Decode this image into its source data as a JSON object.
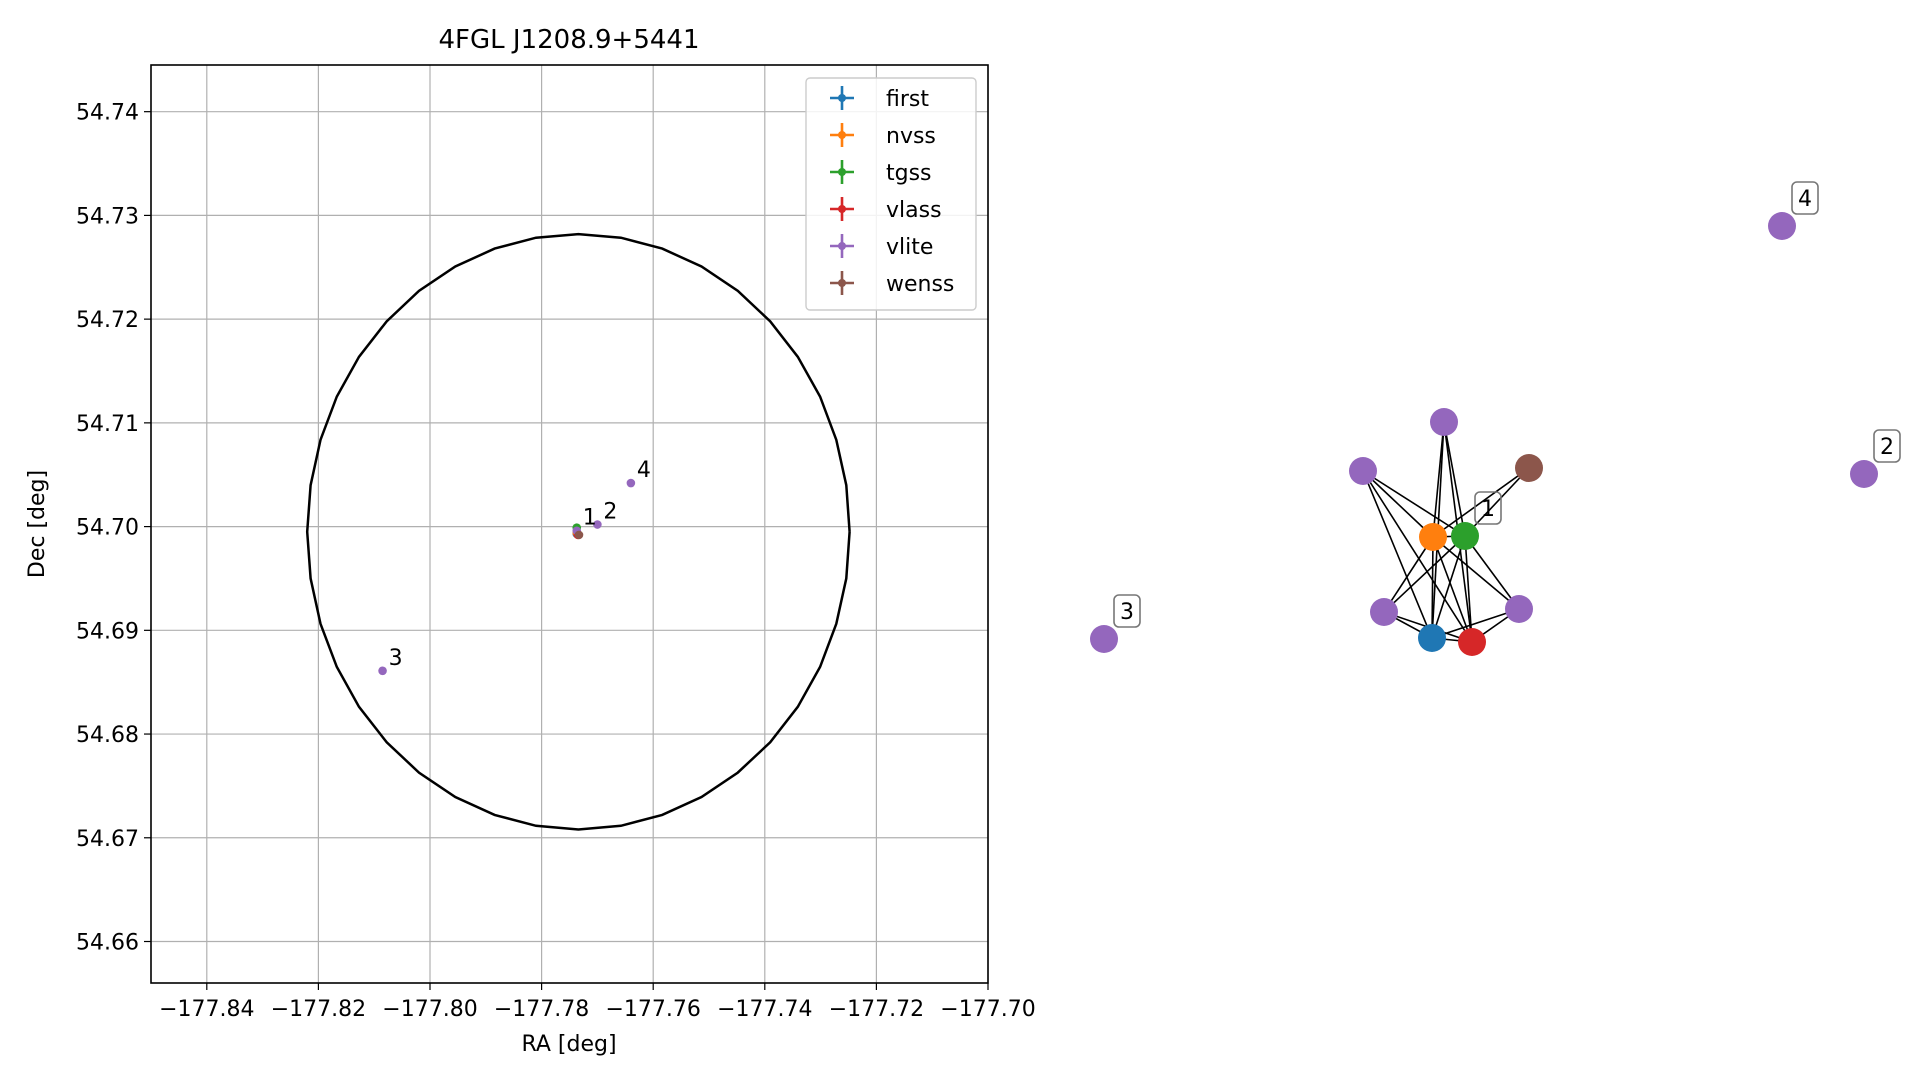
{
  "chart_data": [
    {
      "type": "scatter",
      "title": "4FGL J1208.9+5441",
      "xlabel": "RA [deg]",
      "ylabel": "Dec [deg]",
      "xlim": [
        -177.85,
        -177.7
      ],
      "ylim": [
        54.656,
        54.7445
      ],
      "xticks": [
        -177.84,
        -177.82,
        -177.8,
        -177.78,
        -177.76,
        -177.74,
        -177.72,
        -177.7
      ],
      "xtick_labels": [
        "−177.84",
        "−177.82",
        "−177.80",
        "−177.78",
        "−177.76",
        "−177.74",
        "−177.72",
        "−177.70"
      ],
      "yticks": [
        54.66,
        54.67,
        54.68,
        54.69,
        54.7,
        54.71,
        54.72,
        54.73,
        54.74
      ],
      "ytick_labels": [
        "54.66",
        "54.67",
        "54.68",
        "54.69",
        "54.70",
        "54.71",
        "54.72",
        "54.73",
        "54.74"
      ],
      "grid": true,
      "legend_position": "top-right",
      "ellipse": {
        "center": [
          -177.7734,
          54.6995
        ],
        "half_width_ra": 0.0486,
        "half_height_dec": 0.0287,
        "color": "#000000"
      },
      "series": [
        {
          "name": "first",
          "color": "#1f77b4",
          "points": [
            [
              -177.7737,
              54.6993
            ]
          ]
        },
        {
          "name": "nvss",
          "color": "#ff7f0e",
          "points": [
            [
              -177.7737,
              54.6994
            ]
          ]
        },
        {
          "name": "tgss",
          "color": "#2ca02c",
          "points": [
            [
              -177.7737,
              54.6999
            ]
          ]
        },
        {
          "name": "vlass",
          "color": "#d62728",
          "points": [
            [
              -177.7735,
              54.6992
            ]
          ]
        },
        {
          "name": "vlite",
          "color": "#9467bd",
          "points": [
            [
              -177.7737,
              54.6996
            ],
            [
              -177.77,
              54.7002
            ],
            [
              -177.8085,
              54.6861
            ],
            [
              -177.764,
              54.7042
            ]
          ]
        },
        {
          "name": "wenss",
          "color": "#8c564b",
          "points": [
            [
              -177.7733,
              54.6992
            ]
          ]
        }
      ],
      "annotations": [
        {
          "text": "1",
          "at": [
            -177.7737,
            54.6996
          ]
        },
        {
          "text": "2",
          "at": [
            -177.77,
            54.7002
          ]
        },
        {
          "text": "3",
          "at": [
            -177.8085,
            54.6861
          ]
        },
        {
          "text": "4",
          "at": [
            -177.764,
            54.7042
          ]
        }
      ]
    },
    {
      "type": "network",
      "node_colors": {
        "vlite": "#9467bd",
        "first": "#1f77b4",
        "nvss": "#ff7f0e",
        "tgss": "#2ca02c",
        "vlass": "#d62728",
        "wenss": "#8c564b"
      },
      "nodes": [
        {
          "id": "v_top",
          "kind": "vlite",
          "label": ""
        },
        {
          "id": "v_left",
          "kind": "vlite",
          "label": ""
        },
        {
          "id": "wenss",
          "kind": "wenss",
          "label": ""
        },
        {
          "id": "nvss",
          "kind": "nvss",
          "label": ""
        },
        {
          "id": "tgss",
          "kind": "tgss",
          "label": "1"
        },
        {
          "id": "v_bl",
          "kind": "vlite",
          "label": ""
        },
        {
          "id": "v_br",
          "kind": "vlite",
          "label": ""
        },
        {
          "id": "first",
          "kind": "first",
          "label": ""
        },
        {
          "id": "vlass",
          "kind": "vlass",
          "label": ""
        },
        {
          "id": "v3",
          "kind": "vlite",
          "label": "3"
        },
        {
          "id": "v4",
          "kind": "vlite",
          "label": "4"
        },
        {
          "id": "v2",
          "kind": "vlite",
          "label": "2"
        }
      ],
      "edges": [
        [
          "v_top",
          "nvss"
        ],
        [
          "v_top",
          "tgss"
        ],
        [
          "v_top",
          "first"
        ],
        [
          "v_top",
          "vlass"
        ],
        [
          "v_left",
          "nvss"
        ],
        [
          "v_left",
          "tgss"
        ],
        [
          "v_left",
          "first"
        ],
        [
          "v_left",
          "vlass"
        ],
        [
          "wenss",
          "nvss"
        ],
        [
          "wenss",
          "tgss"
        ],
        [
          "nvss",
          "tgss"
        ],
        [
          "nvss",
          "v_bl"
        ],
        [
          "nvss",
          "v_br"
        ],
        [
          "nvss",
          "first"
        ],
        [
          "nvss",
          "vlass"
        ],
        [
          "tgss",
          "v_bl"
        ],
        [
          "tgss",
          "v_br"
        ],
        [
          "tgss",
          "first"
        ],
        [
          "tgss",
          "vlass"
        ],
        [
          "v_bl",
          "first"
        ],
        [
          "v_bl",
          "vlass"
        ],
        [
          "v_br",
          "first"
        ],
        [
          "v_br",
          "vlass"
        ],
        [
          "first",
          "vlass"
        ]
      ]
    }
  ]
}
